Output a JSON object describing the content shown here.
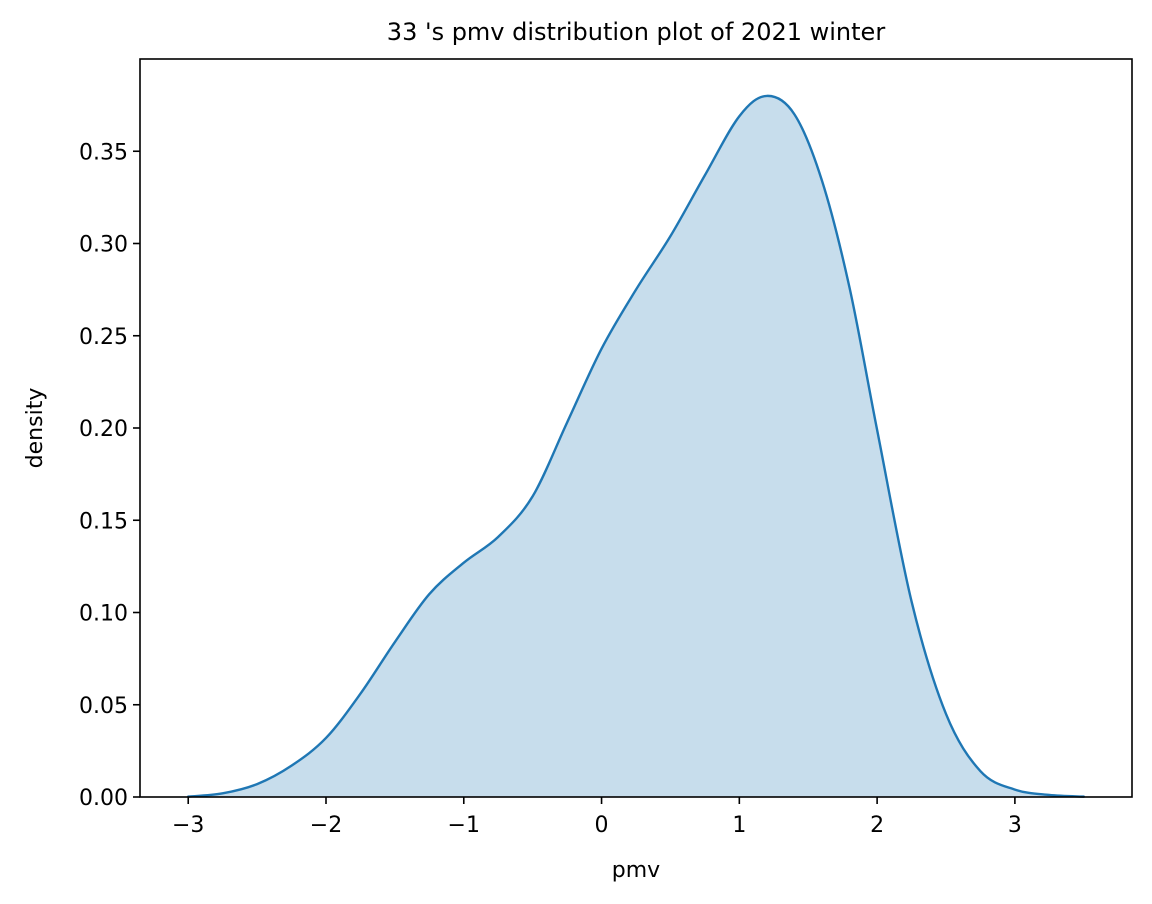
{
  "chart_data": {
    "type": "area",
    "title": "33 's pmv distribution plot of 2021 winter",
    "xlabel": "pmv",
    "ylabel": "density",
    "xlim": [
      -3.35,
      3.85
    ],
    "ylim": [
      0.0,
      0.4
    ],
    "xticks": [
      -3,
      -2,
      -1,
      0,
      1,
      2,
      3
    ],
    "xtick_labels": [
      "−3",
      "−2",
      "−1",
      "0",
      "1",
      "2",
      "3"
    ],
    "yticks": [
      0.0,
      0.05,
      0.1,
      0.15,
      0.2,
      0.25,
      0.3,
      0.35
    ],
    "ytick_labels": [
      "0.00",
      "0.05",
      "0.10",
      "0.15",
      "0.20",
      "0.25",
      "0.30",
      "0.35"
    ],
    "grid": false,
    "series": [
      {
        "line_color": "#1f77b4",
        "fill_color": "#1f77b4",
        "fill_opacity": 0.25,
        "x": [
          -3.0,
          -2.75,
          -2.5,
          -2.25,
          -2.0,
          -1.75,
          -1.5,
          -1.25,
          -1.0,
          -0.75,
          -0.5,
          -0.25,
          0.0,
          0.25,
          0.5,
          0.75,
          1.0,
          1.2,
          1.4,
          1.6,
          1.8,
          2.0,
          2.25,
          2.5,
          2.75,
          3.0,
          3.25,
          3.5
        ],
        "y": [
          0.0002,
          0.002,
          0.007,
          0.017,
          0.032,
          0.056,
          0.084,
          0.11,
          0.127,
          0.141,
          0.163,
          0.203,
          0.243,
          0.275,
          0.304,
          0.337,
          0.369,
          0.38,
          0.37,
          0.334,
          0.276,
          0.199,
          0.106,
          0.045,
          0.014,
          0.004,
          0.0011,
          0.0002
        ]
      }
    ]
  }
}
